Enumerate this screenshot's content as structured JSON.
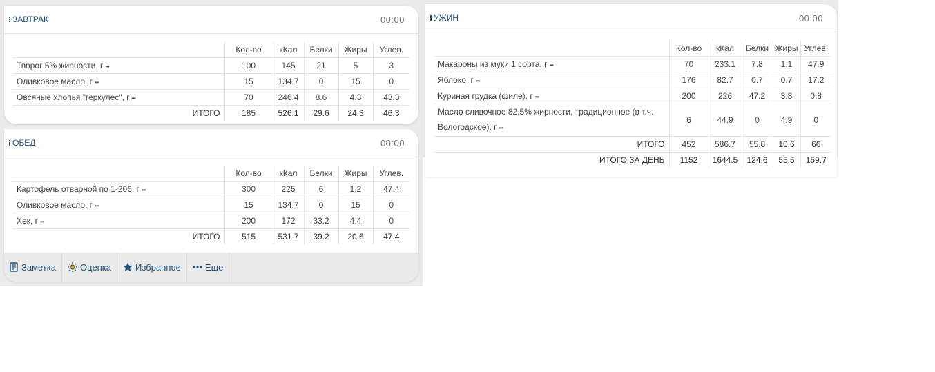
{
  "columns": [
    "Кол-во",
    "кКал",
    "Белки",
    "Жиры",
    "Углев."
  ],
  "more_icon": "ellipsis-icon",
  "meals": [
    {
      "title": "ЗАВТРАК",
      "time": "00:00",
      "rows": [
        {
          "name": "Творог 5% жирности, г",
          "qty": "100",
          "kcal": "145",
          "protein": "21",
          "fat": "5",
          "carbs": "3"
        },
        {
          "name": "Оливковое масло, г",
          "qty": "15",
          "kcal": "134.7",
          "protein": "0",
          "fat": "15",
          "carbs": "0"
        },
        {
          "name": "Овсяные хлопья \"геркулес\", г",
          "qty": "70",
          "kcal": "246.4",
          "protein": "8.6",
          "fat": "4.3",
          "carbs": "43.3"
        }
      ],
      "total": {
        "label": "ИТОГО",
        "qty": "185",
        "kcal": "526.1",
        "protein": "29.6",
        "fat": "24.3",
        "carbs": "46.3"
      }
    },
    {
      "title": "ОБЕД",
      "time": "00:00",
      "rows": [
        {
          "name": "Картофель отварной по 1-206, г",
          "qty": "300",
          "kcal": "225",
          "protein": "6",
          "fat": "1.2",
          "carbs": "47.4"
        },
        {
          "name": "Оливковое масло, г",
          "qty": "15",
          "kcal": "134.7",
          "protein": "0",
          "fat": "15",
          "carbs": "0"
        },
        {
          "name": "Хек, г",
          "qty": "200",
          "kcal": "172",
          "protein": "33.2",
          "fat": "4.4",
          "carbs": "0"
        }
      ],
      "total": {
        "label": "ИТОГО",
        "qty": "515",
        "kcal": "531.7",
        "protein": "39.2",
        "fat": "20.6",
        "carbs": "47.4"
      }
    },
    {
      "title": "УЖИН",
      "time": "00:00",
      "rows": [
        {
          "name": "Макароны из муки 1 сорта, г",
          "qty": "70",
          "kcal": "233.1",
          "protein": "7.8",
          "fat": "1.1",
          "carbs": "47.9"
        },
        {
          "name": "Яблоко, г",
          "qty": "176",
          "kcal": "82.7",
          "protein": "0.7",
          "fat": "0.7",
          "carbs": "17.2"
        },
        {
          "name": "Куриная грудка (филе), г",
          "qty": "200",
          "kcal": "226",
          "protein": "47.2",
          "fat": "3.8",
          "carbs": "0.8"
        },
        {
          "name": "Масло сливочное 82,5% жирности, традиционное (в т.ч. Вологодское), г",
          "qty": "6",
          "kcal": "44.9",
          "protein": "0",
          "fat": "4.9",
          "carbs": "0"
        }
      ],
      "total": {
        "label": "ИТОГО",
        "qty": "452",
        "kcal": "586.7",
        "protein": "55.8",
        "fat": "10.6",
        "carbs": "66"
      }
    }
  ],
  "day_total": {
    "label": "ИТОГО ЗА ДЕНЬ",
    "qty": "1152",
    "kcal": "1644.5",
    "protein": "124.6",
    "fat": "55.5",
    "carbs": "159.7"
  },
  "toolbar": [
    {
      "label": "Заметка",
      "icon": "note-icon"
    },
    {
      "label": "Оценка",
      "icon": "sun-icon"
    },
    {
      "label": "Избранное",
      "icon": "star-icon"
    },
    {
      "label": "Еще",
      "icon": "ellipsis-icon"
    }
  ],
  "colors": {
    "accent": "#1d5280",
    "background": "#ebebeb"
  }
}
